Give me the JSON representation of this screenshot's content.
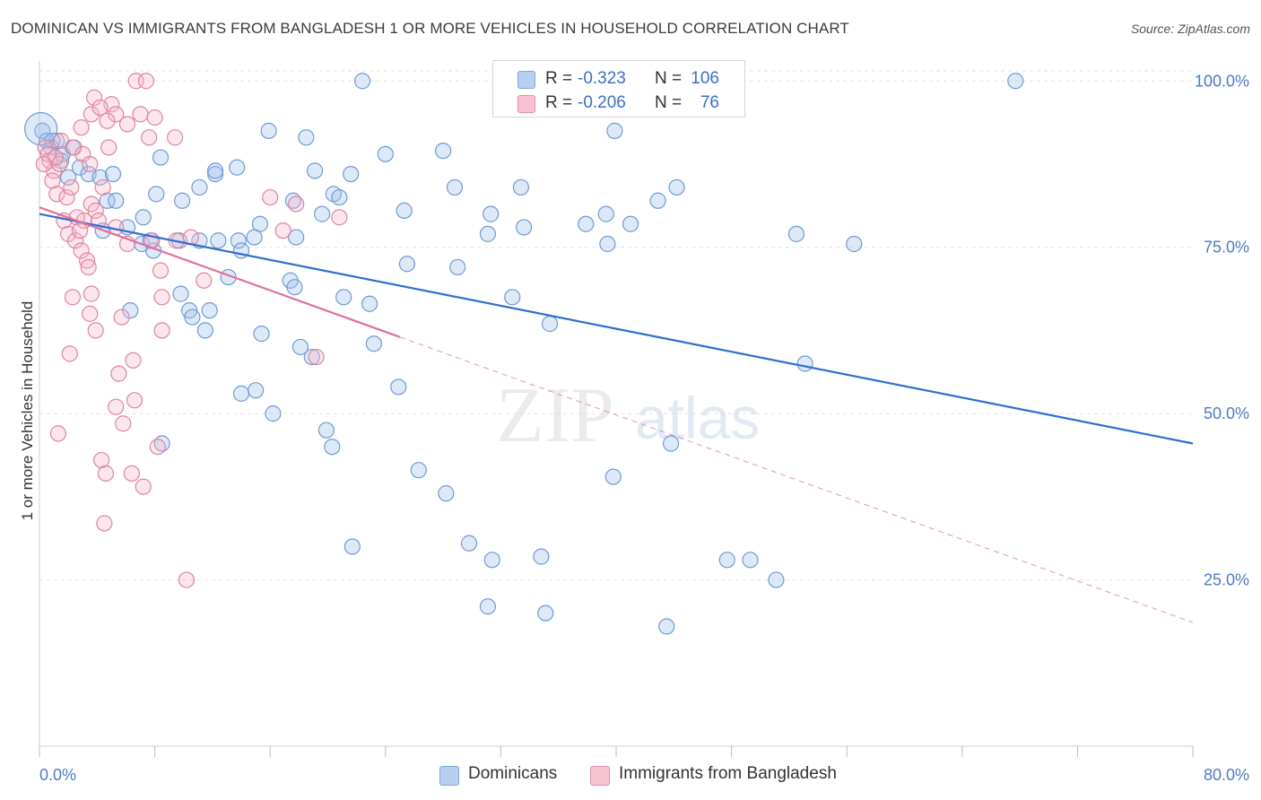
{
  "header": {
    "title": "DOMINICAN VS IMMIGRANTS FROM BANGLADESH 1 OR MORE VEHICLES IN HOUSEHOLD CORRELATION CHART",
    "source": "Source: ZipAtlas.com"
  },
  "legend": {
    "r_label": "R =",
    "n_label": "N =",
    "series": [
      {
        "r": "-0.323",
        "n": "106",
        "color": "#7ea6e0",
        "fill": "#b7cff0"
      },
      {
        "r": "-0.206",
        "n": "76",
        "color": "#e98aa8",
        "fill": "#f7c3d3"
      }
    ]
  },
  "bottom_legend": [
    "Dominicans",
    "Immigrants from Bangladesh"
  ],
  "watermark": {
    "zip": "ZIP",
    "atlas": "atlas"
  },
  "colors": {
    "blue_stroke": "#6f9ad8",
    "blue_fill": "rgba(160,192,236,0.35)",
    "blue_line": "#2e6fcf",
    "pink_stroke": "#e4839f",
    "pink_fill": "rgba(244,182,203,0.35)",
    "pink_line": "#e0709a",
    "grid": "#e2e2e2",
    "tick": "#4a7bd0"
  },
  "chart_data": {
    "type": "scatter",
    "title": "DOMINICAN VS IMMIGRANTS FROM BANGLADESH 1 OR MORE VEHICLES IN HOUSEHOLD CORRELATION CHART",
    "xlabel": "",
    "ylabel": "1 or more Vehicles in Household",
    "xlim": [
      0,
      80
    ],
    "ylim": [
      0,
      103
    ],
    "x_ticks": [
      "0.0%",
      "80.0%"
    ],
    "y_ticks": [
      {
        "value": 25,
        "label": "25.0%"
      },
      {
        "value": 50,
        "label": "50.0%"
      },
      {
        "value": 75,
        "label": "75.0%"
      },
      {
        "value": 100,
        "label": "100.0%"
      }
    ],
    "grid": true,
    "legend_position": "top-center",
    "series": [
      {
        "name": "Dominicans",
        "r": -0.323,
        "n": 106,
        "trend": {
          "x0": 0,
          "y0": 80,
          "x1": 80,
          "y1": 45.5,
          "dashed_x1": 80
        },
        "points": [
          [
            0.2,
            92.5
          ],
          [
            0.5,
            91
          ],
          [
            0.8,
            90
          ],
          [
            1.2,
            91
          ],
          [
            1.6,
            89
          ],
          [
            2.3,
            90
          ],
          [
            2.8,
            87
          ],
          [
            3.4,
            86
          ],
          [
            4.2,
            85.5
          ],
          [
            5.1,
            86
          ],
          [
            2,
            85.5
          ],
          [
            4.7,
            82
          ],
          [
            5.3,
            82
          ],
          [
            7.2,
            79.5
          ],
          [
            6.1,
            78
          ],
          [
            4.4,
            77.5
          ],
          [
            7.1,
            75.5
          ],
          [
            7.9,
            74.5
          ],
          [
            7.7,
            76
          ],
          [
            9.7,
            76
          ],
          [
            8.4,
            88.5
          ],
          [
            8.1,
            83
          ],
          [
            9.9,
            82
          ],
          [
            11.1,
            84
          ],
          [
            12.2,
            86
          ],
          [
            13.7,
            87
          ],
          [
            12.4,
            76
          ],
          [
            13.8,
            76
          ],
          [
            14,
            74.5
          ],
          [
            15.3,
            78.5
          ],
          [
            14.9,
            76.5
          ],
          [
            15.9,
            92.5
          ],
          [
            17.6,
            82
          ],
          [
            17.8,
            76.5
          ],
          [
            17.4,
            70
          ],
          [
            17.7,
            69
          ],
          [
            18.5,
            91.5
          ],
          [
            19.1,
            86.5
          ],
          [
            19.6,
            80
          ],
          [
            20.4,
            83
          ],
          [
            20.8,
            82.5
          ],
          [
            21.6,
            86
          ],
          [
            22.4,
            100
          ],
          [
            21.1,
            67.5
          ],
          [
            22.9,
            66.5
          ],
          [
            24,
            89
          ],
          [
            25.3,
            80.5
          ],
          [
            25.5,
            72.5
          ],
          [
            28,
            89.5
          ],
          [
            28.8,
            84
          ],
          [
            29,
            72
          ],
          [
            31.3,
            80
          ],
          [
            31.1,
            77
          ],
          [
            32.8,
            67.5
          ],
          [
            33.4,
            84
          ],
          [
            33.6,
            78
          ],
          [
            35.4,
            63.5
          ],
          [
            35.4,
            100
          ],
          [
            37.9,
            78.5
          ],
          [
            39.3,
            80
          ],
          [
            39.4,
            75.5
          ],
          [
            39.9,
            92.5
          ],
          [
            41,
            78.5
          ],
          [
            42.9,
            82
          ],
          [
            44.2,
            84
          ],
          [
            44.2,
            100
          ],
          [
            52.5,
            77
          ],
          [
            53.1,
            57.5
          ],
          [
            56.5,
            75.5
          ],
          [
            67.7,
            100
          ],
          [
            12.2,
            86.5
          ],
          [
            11.1,
            76
          ],
          [
            9.8,
            68
          ],
          [
            10.4,
            65.5
          ],
          [
            10.6,
            64.5
          ],
          [
            11.5,
            62.5
          ],
          [
            11.8,
            65.5
          ],
          [
            13.1,
            70.5
          ],
          [
            14,
            53
          ],
          [
            15,
            53.5
          ],
          [
            15.4,
            62
          ],
          [
            16.2,
            50
          ],
          [
            18.1,
            60
          ],
          [
            18.9,
            58.5
          ],
          [
            19.9,
            47.5
          ],
          [
            20.3,
            45
          ],
          [
            21.7,
            30
          ],
          [
            23.2,
            60.5
          ],
          [
            24.9,
            54
          ],
          [
            26.3,
            41.5
          ],
          [
            28.2,
            38
          ],
          [
            29.8,
            30.5
          ],
          [
            31.4,
            28
          ],
          [
            31.1,
            21
          ],
          [
            34.8,
            28.5
          ],
          [
            35.1,
            20
          ],
          [
            39.8,
            40.5
          ],
          [
            43.5,
            18
          ],
          [
            43.8,
            45.5
          ],
          [
            47.7,
            28
          ],
          [
            49.3,
            28
          ],
          [
            51.1,
            25
          ],
          [
            6.3,
            65.5
          ],
          [
            8.5,
            45.5
          ],
          [
            0.9,
            91
          ],
          [
            1.5,
            88
          ]
        ]
      },
      {
        "name": "Immigrants from Bangladesh",
        "r": -0.206,
        "n": 76,
        "trend": {
          "x0": 0,
          "y0": 81,
          "x1": 25,
          "y1": 61.5,
          "dashed_x1": 80
        },
        "points": [
          [
            0.4,
            90
          ],
          [
            0.7,
            88
          ],
          [
            1,
            86.5
          ],
          [
            1.5,
            91
          ],
          [
            0.9,
            85
          ],
          [
            1.2,
            83
          ],
          [
            1.9,
            82.5
          ],
          [
            2.6,
            79.5
          ],
          [
            3.1,
            79
          ],
          [
            3.6,
            81.5
          ],
          [
            1.7,
            79
          ],
          [
            2,
            77
          ],
          [
            2.5,
            76
          ],
          [
            2.9,
            74.5
          ],
          [
            3.3,
            73
          ],
          [
            3.9,
            80.5
          ],
          [
            4.4,
            84
          ],
          [
            4.8,
            90
          ],
          [
            5,
            96.5
          ],
          [
            5.3,
            95
          ],
          [
            6.1,
            93.5
          ],
          [
            7,
            95
          ],
          [
            6.7,
            100
          ],
          [
            7.4,
            100
          ],
          [
            7.6,
            91.5
          ],
          [
            8,
            94.5
          ],
          [
            9.4,
            91.5
          ],
          [
            3.6,
            95
          ],
          [
            4.7,
            94
          ],
          [
            2.9,
            93
          ],
          [
            3.8,
            97.5
          ],
          [
            4.2,
            96
          ],
          [
            1.4,
            87.5
          ],
          [
            2.4,
            90
          ],
          [
            3,
            89
          ],
          [
            3.5,
            87.5
          ],
          [
            0.6,
            89
          ],
          [
            1.1,
            88.5
          ],
          [
            0.3,
            87.5
          ],
          [
            2.2,
            84
          ],
          [
            2.8,
            77.5
          ],
          [
            3.4,
            72
          ],
          [
            4.1,
            79
          ],
          [
            5.3,
            78
          ],
          [
            6.1,
            75.5
          ],
          [
            7.8,
            76
          ],
          [
            8.4,
            71.5
          ],
          [
            8.5,
            67.5
          ],
          [
            9.5,
            76
          ],
          [
            10.5,
            76.5
          ],
          [
            11.4,
            70
          ],
          [
            16,
            82.5
          ],
          [
            16.9,
            77.5
          ],
          [
            17.8,
            81.5
          ],
          [
            20.8,
            79.5
          ],
          [
            19.2,
            58.5
          ],
          [
            3.6,
            68
          ],
          [
            3.5,
            65
          ],
          [
            5.7,
            64.5
          ],
          [
            8.5,
            62.5
          ],
          [
            2.1,
            59
          ],
          [
            5.5,
            56
          ],
          [
            1.3,
            47
          ],
          [
            4.3,
            43
          ],
          [
            4.6,
            41
          ],
          [
            6.4,
            41
          ],
          [
            7.2,
            39
          ],
          [
            4.5,
            33.5
          ],
          [
            10.2,
            25
          ],
          [
            5.3,
            51
          ],
          [
            5.8,
            48.5
          ],
          [
            6.6,
            52
          ],
          [
            2.3,
            67.5
          ],
          [
            3.9,
            62.5
          ],
          [
            8.2,
            45
          ],
          [
            6.5,
            58
          ]
        ]
      }
    ]
  }
}
